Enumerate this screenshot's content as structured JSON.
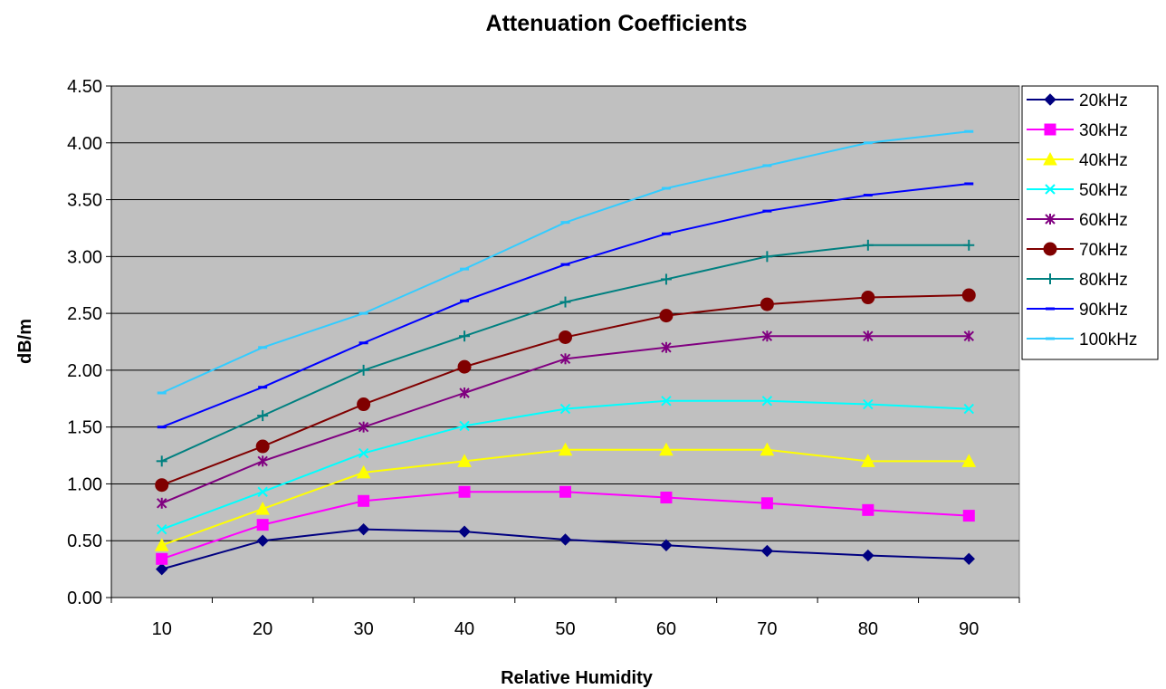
{
  "chart_data": {
    "type": "line",
    "title": "Attenuation Coefficients",
    "xlabel": "Relative Humidity",
    "ylabel": "dB/m",
    "categories": [
      "10",
      "20",
      "30",
      "40",
      "50",
      "60",
      "70",
      "80",
      "90"
    ],
    "ylim": [
      0,
      4.5
    ],
    "y_ticks": [
      "0.00",
      "0.50",
      "1.00",
      "1.50",
      "2.00",
      "2.50",
      "3.00",
      "3.50",
      "4.00",
      "4.50"
    ],
    "grid": true,
    "legend_position": "right",
    "plot_background": "#c0c0c0",
    "series": [
      {
        "name": "20kHz",
        "color": "#000080",
        "marker": "diamond",
        "values": [
          0.25,
          0.5,
          0.6,
          0.58,
          0.51,
          0.46,
          0.41,
          0.37,
          0.34
        ]
      },
      {
        "name": "30kHz",
        "color": "#ff00ff",
        "marker": "square",
        "values": [
          0.34,
          0.64,
          0.85,
          0.93,
          0.93,
          0.88,
          0.83,
          0.77,
          0.72
        ]
      },
      {
        "name": "40kHz",
        "color": "#ffff00",
        "marker": "triangle",
        "values": [
          0.46,
          0.78,
          1.1,
          1.2,
          1.3,
          1.3,
          1.3,
          1.2,
          1.2
        ]
      },
      {
        "name": "50kHz",
        "color": "#00ffff",
        "marker": "x",
        "values": [
          0.6,
          0.93,
          1.27,
          1.51,
          1.66,
          1.73,
          1.73,
          1.7,
          1.66
        ]
      },
      {
        "name": "60kHz",
        "color": "#800080",
        "marker": "star",
        "values": [
          0.83,
          1.2,
          1.5,
          1.8,
          2.1,
          2.2,
          2.3,
          2.3,
          2.3
        ]
      },
      {
        "name": "70kHz",
        "color": "#800000",
        "marker": "circle",
        "values": [
          0.99,
          1.33,
          1.7,
          2.03,
          2.29,
          2.48,
          2.58,
          2.64,
          2.66
        ]
      },
      {
        "name": "80kHz",
        "color": "#008080",
        "marker": "plus",
        "values": [
          1.2,
          1.6,
          2.0,
          2.3,
          2.6,
          2.8,
          3.0,
          3.1,
          3.1
        ]
      },
      {
        "name": "90kHz",
        "color": "#0000ff",
        "marker": "dash",
        "values": [
          1.5,
          1.85,
          2.24,
          2.61,
          2.93,
          3.2,
          3.4,
          3.54,
          3.64
        ]
      },
      {
        "name": "100kHz",
        "color": "#33ccff",
        "marker": "dash",
        "values": [
          1.8,
          2.2,
          2.5,
          2.89,
          3.3,
          3.6,
          3.8,
          4.0,
          4.1
        ]
      }
    ]
  }
}
